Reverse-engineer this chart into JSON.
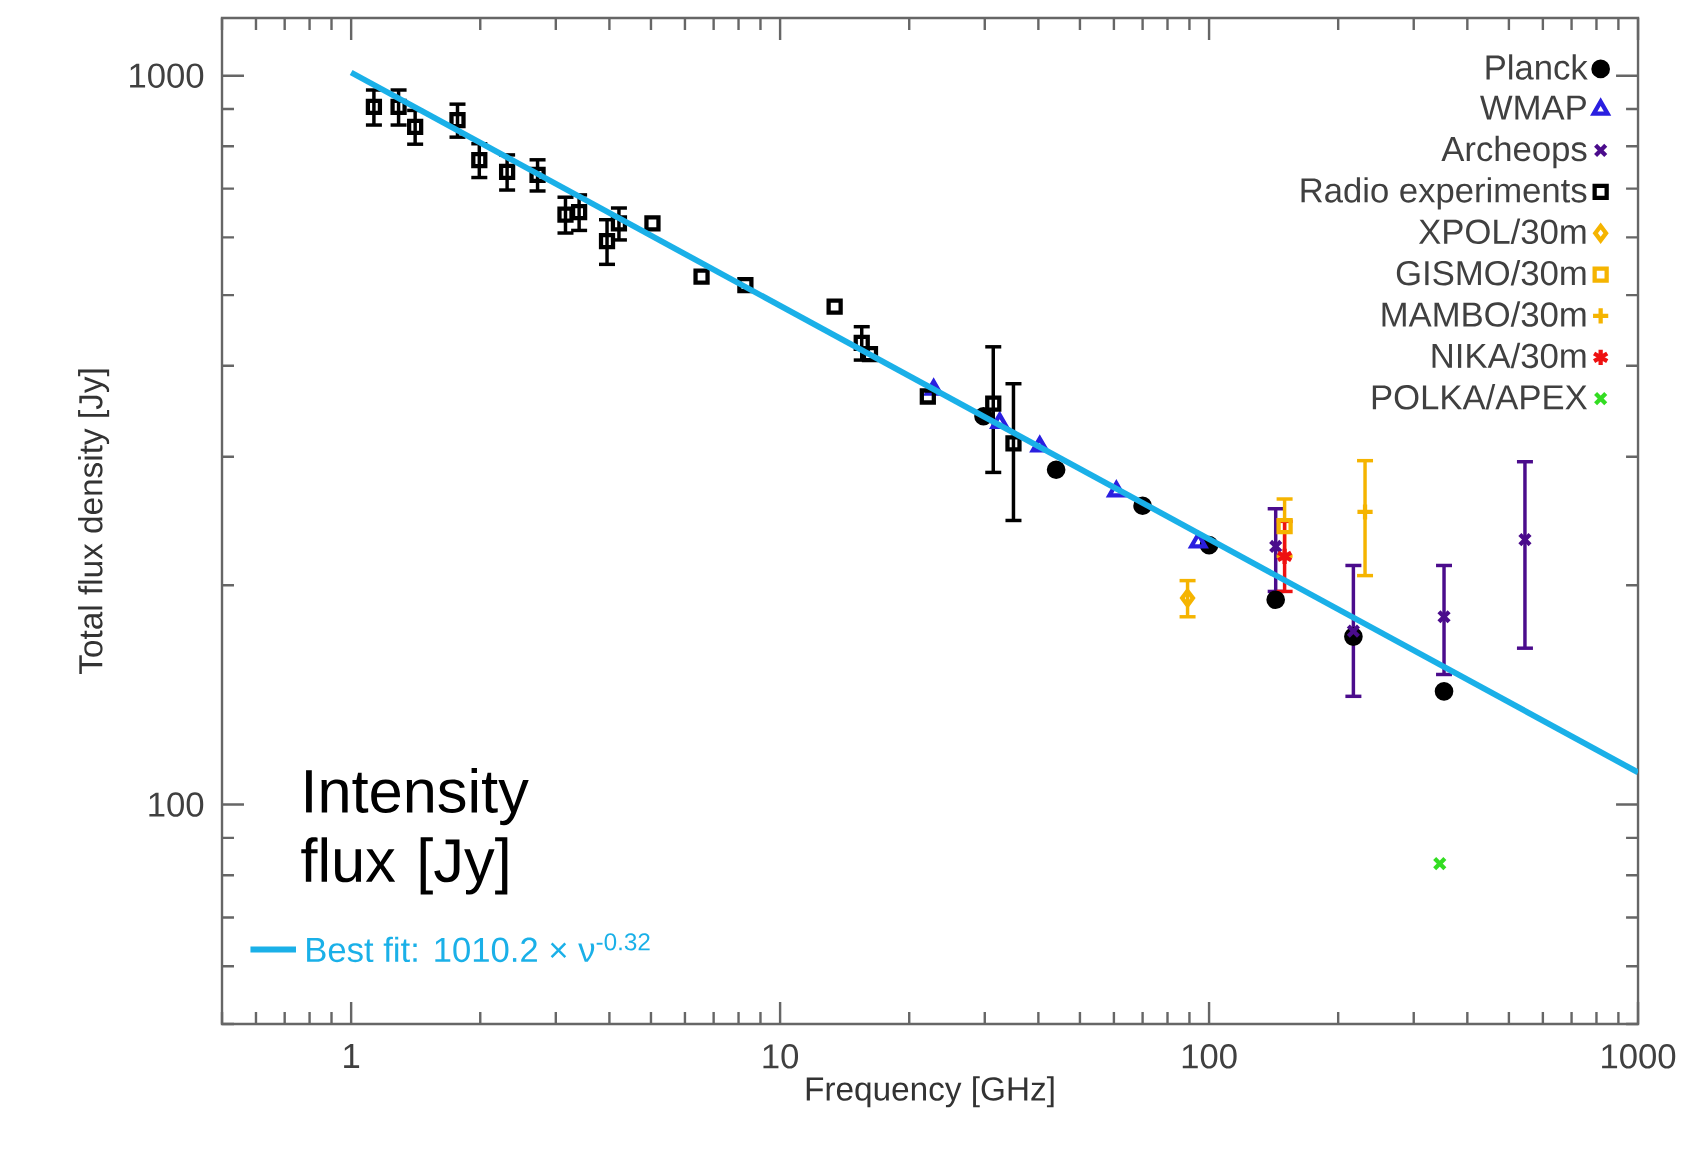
{
  "chart_data": {
    "type": "scatter",
    "xlabel": "Frequency [GHz]",
    "ylabel": "Total flux density [Jy]",
    "log": "xy",
    "xlim": [
      0.5,
      1000
    ],
    "ylim": [
      50,
      1200
    ],
    "xticks": [
      1,
      10,
      100,
      1000
    ],
    "yticks": [
      100,
      1000
    ],
    "legend": "top right",
    "annotations": [
      "Intensity flux [Jy]"
    ],
    "series": [
      {
        "name": "Planck",
        "color": "#000000",
        "marker": "circle",
        "x": [
          29.8,
          44,
          70,
          100,
          143,
          217,
          353
        ],
        "values": [
          341,
          288,
          257,
          227,
          191,
          170,
          143
        ]
      },
      {
        "name": "WMAP",
        "color": "#2a1fe0",
        "marker": "triangle",
        "x": [
          22.8,
          32.5,
          40.3,
          60.8,
          94.4
        ],
        "values": [
          371,
          334,
          310,
          269,
          229
        ]
      },
      {
        "name": "Archeops",
        "color": "#4b0c8c",
        "marker": "cross",
        "x": [
          143,
          217,
          353,
          545
        ],
        "values": [
          226,
          173,
          181,
          231
        ],
        "errors": [
          [
            195,
            256
          ],
          [
            140,
            214
          ],
          [
            150,
            214
          ],
          [
            163,
            297
          ]
        ]
      },
      {
        "name": "Radio experiments",
        "color": "#000000",
        "marker": "square",
        "x": [
          1.13,
          1.29,
          1.41,
          1.77,
          1.99,
          2.31,
          2.72,
          3.16,
          3.4,
          3.95,
          4.21,
          5.04,
          6.56,
          8.3,
          13.4,
          15.5,
          16.2,
          22.1,
          31.4,
          35.0
        ],
        "values": [
          906,
          906,
          851,
          869,
          766,
          738,
          731,
          645,
          650,
          593,
          627,
          627,
          530,
          516,
          482,
          430,
          415,
          363,
          355,
          313
        ],
        "errors": [
          55,
          55,
          50,
          50,
          45,
          45,
          40,
          40,
          40,
          45,
          35,
          null,
          null,
          null,
          null,
          25,
          null,
          null,
          [
            284,
            427
          ],
          [
            244,
            380
          ]
        ]
      },
      {
        "name": "XPOL/30m",
        "color": "#f5b400",
        "marker": "diamond",
        "x": [
          89.1
        ],
        "values": [
          192
        ],
        "errors": [
          [
            180,
            204
          ]
        ]
      },
      {
        "name": "GISMO/30m",
        "color": "#f5b400",
        "marker": "square",
        "x": [
          150
        ],
        "values": [
          241
        ],
        "errors": [
          [
            218,
            264
          ]
        ]
      },
      {
        "name": "MAMBO/30m",
        "color": "#f5b400",
        "marker": "plus",
        "x": [
          231
        ],
        "values": [
          252
        ],
        "errors": [
          [
            205,
            298
          ]
        ]
      },
      {
        "name": "NIKA/30m",
        "color": "#ee1111",
        "x": [
          150
        ],
        "values": [
          219
        ],
        "errors": [
          [
            195,
            246
          ]
        ]
      },
      {
        "name": "POLKA/APEX",
        "color": "#33dd22",
        "marker": "cross",
        "x": [
          345
        ],
        "values": [
          83
        ]
      },
      {
        "name": "Best fit: 1010.2 × ν$^{-0.32}$",
        "type": "line",
        "color": "#1ab0e8",
        "x": [
          1,
          1000
        ],
        "values": [
          1010.2,
          110.7
        ]
      }
    ]
  }
}
